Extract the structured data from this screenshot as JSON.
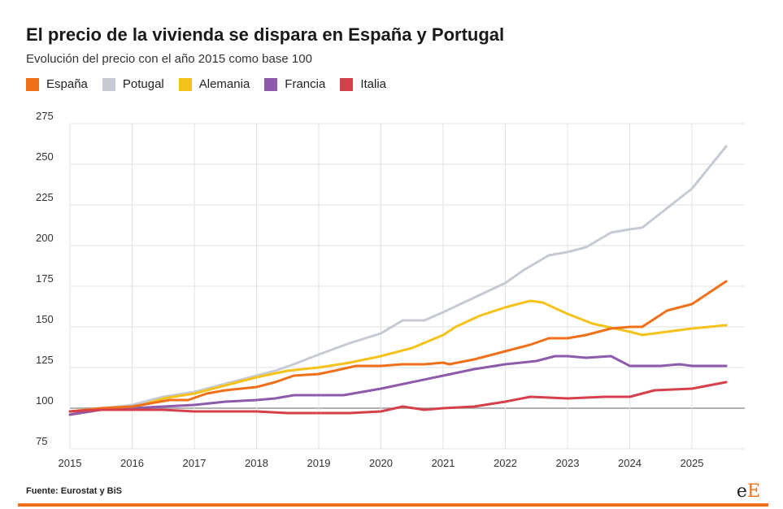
{
  "header": {
    "title": "El precio de la vivienda se dispara en España y Portugal",
    "subtitle": "Evolución del precio con el año 2015 como base 100"
  },
  "source": "Fuente: Eurostat y BiS",
  "logo": {
    "lower": "e",
    "upper": "E"
  },
  "colors": {
    "accent": "#f0701a",
    "grid": "#e2e2e2",
    "baseline": "#999999"
  },
  "chart_data": {
    "type": "line",
    "title": "El precio de la vivienda se dispara en España y Portugal",
    "subtitle": "Evolución del precio con el año 2015 como base 100",
    "xlim": [
      2015,
      2025.85
    ],
    "ylim": [
      75,
      275
    ],
    "x_ticks": [
      "2015",
      "2016",
      "2017",
      "2018",
      "2019",
      "2020",
      "2021",
      "2022",
      "2023",
      "2024",
      "2025"
    ],
    "y_ticks": [
      "75",
      "100",
      "125",
      "150",
      "175",
      "200",
      "225",
      "250",
      "275"
    ],
    "baseline": 100,
    "grid": true,
    "legend_position": "top-left",
    "series": [
      {
        "name": "Potugal",
        "color": "#c5cad3",
        "x": [
          2015,
          2015.2,
          2015.5,
          2015.8,
          2016,
          2016.5,
          2017,
          2017.5,
          2018,
          2018.3,
          2018.6,
          2019,
          2019.5,
          2020,
          2020.35,
          2020.7,
          2021,
          2021.5,
          2022,
          2022.3,
          2022.7,
          2023,
          2023.3,
          2023.7,
          2024,
          2024.2,
          2024.6,
          2025,
          2025.55
        ],
        "y": [
          96,
          98,
          100,
          101,
          102,
          107,
          110,
          115,
          120,
          123,
          127,
          133,
          140,
          146,
          154,
          154,
          159,
          168,
          177,
          185,
          194,
          196,
          199,
          208,
          210,
          211,
          223,
          235,
          261
        ]
      },
      {
        "name": "Alemania",
        "color": "#f5c21b",
        "x": [
          2015,
          2015.5,
          2016,
          2016.5,
          2017,
          2017.5,
          2018,
          2018.5,
          2019,
          2019.5,
          2020,
          2020.5,
          2021,
          2021.2,
          2021.6,
          2022,
          2022.4,
          2022.6,
          2023,
          2023.4,
          2024,
          2024.2,
          2024.4,
          2025,
          2025.55
        ],
        "y": [
          96,
          99,
          100,
          106,
          109,
          114,
          119,
          123,
          125,
          128,
          132,
          137,
          145,
          150,
          157,
          162,
          166,
          165,
          158,
          152,
          147,
          145,
          146,
          149,
          151
        ]
      },
      {
        "name": "Francia",
        "color": "#8e5aab",
        "x": [
          2015,
          2015.5,
          2016,
          2016.5,
          2017,
          2017.5,
          2018,
          2018.3,
          2018.6,
          2019,
          2019.4,
          2020,
          2020.5,
          2021,
          2021.5,
          2022,
          2022.5,
          2022.8,
          2023,
          2023.3,
          2023.7,
          2024,
          2024.2,
          2024.5,
          2024.8,
          2025,
          2025.55
        ],
        "y": [
          96,
          99,
          100,
          101,
          102,
          104,
          105,
          106,
          108,
          108,
          108,
          112,
          116,
          120,
          124,
          127,
          129,
          132,
          132,
          131,
          132,
          126,
          126,
          126,
          127,
          126,
          126
        ]
      },
      {
        "name": "España",
        "color": "#f0701a",
        "x": [
          2015,
          2015.25,
          2015.5,
          2016,
          2016.3,
          2016.6,
          2016.9,
          2017.2,
          2017.5,
          2018,
          2018.3,
          2018.6,
          2019,
          2019.25,
          2019.6,
          2020,
          2020.35,
          2020.7,
          2021,
          2021.1,
          2021.5,
          2022,
          2022.4,
          2022.7,
          2023,
          2023.3,
          2023.7,
          2024,
          2024.2,
          2024.6,
          2025,
          2025.55
        ],
        "y": [
          98,
          99,
          100,
          101,
          103,
          105,
          105,
          109,
          111,
          113,
          116,
          120,
          121,
          123,
          126,
          126,
          127,
          127,
          128,
          127,
          130,
          135,
          139,
          143,
          143,
          145,
          149,
          150,
          150,
          160,
          164,
          178
        ]
      },
      {
        "name": "Italia",
        "color": "#d6404b",
        "x": [
          2015,
          2015.5,
          2016,
          2016.5,
          2017,
          2017.5,
          2018,
          2018.5,
          2019,
          2019.5,
          2020,
          2020.35,
          2020.7,
          2021,
          2021.5,
          2022,
          2022.4,
          2023,
          2023.6,
          2024,
          2024.4,
          2025,
          2025.55
        ],
        "y": [
          98,
          99,
          99,
          99,
          98,
          98,
          98,
          97,
          97,
          97,
          98,
          101,
          99,
          100,
          101,
          104,
          107,
          106,
          107,
          107,
          111,
          112,
          116
        ]
      }
    ]
  }
}
